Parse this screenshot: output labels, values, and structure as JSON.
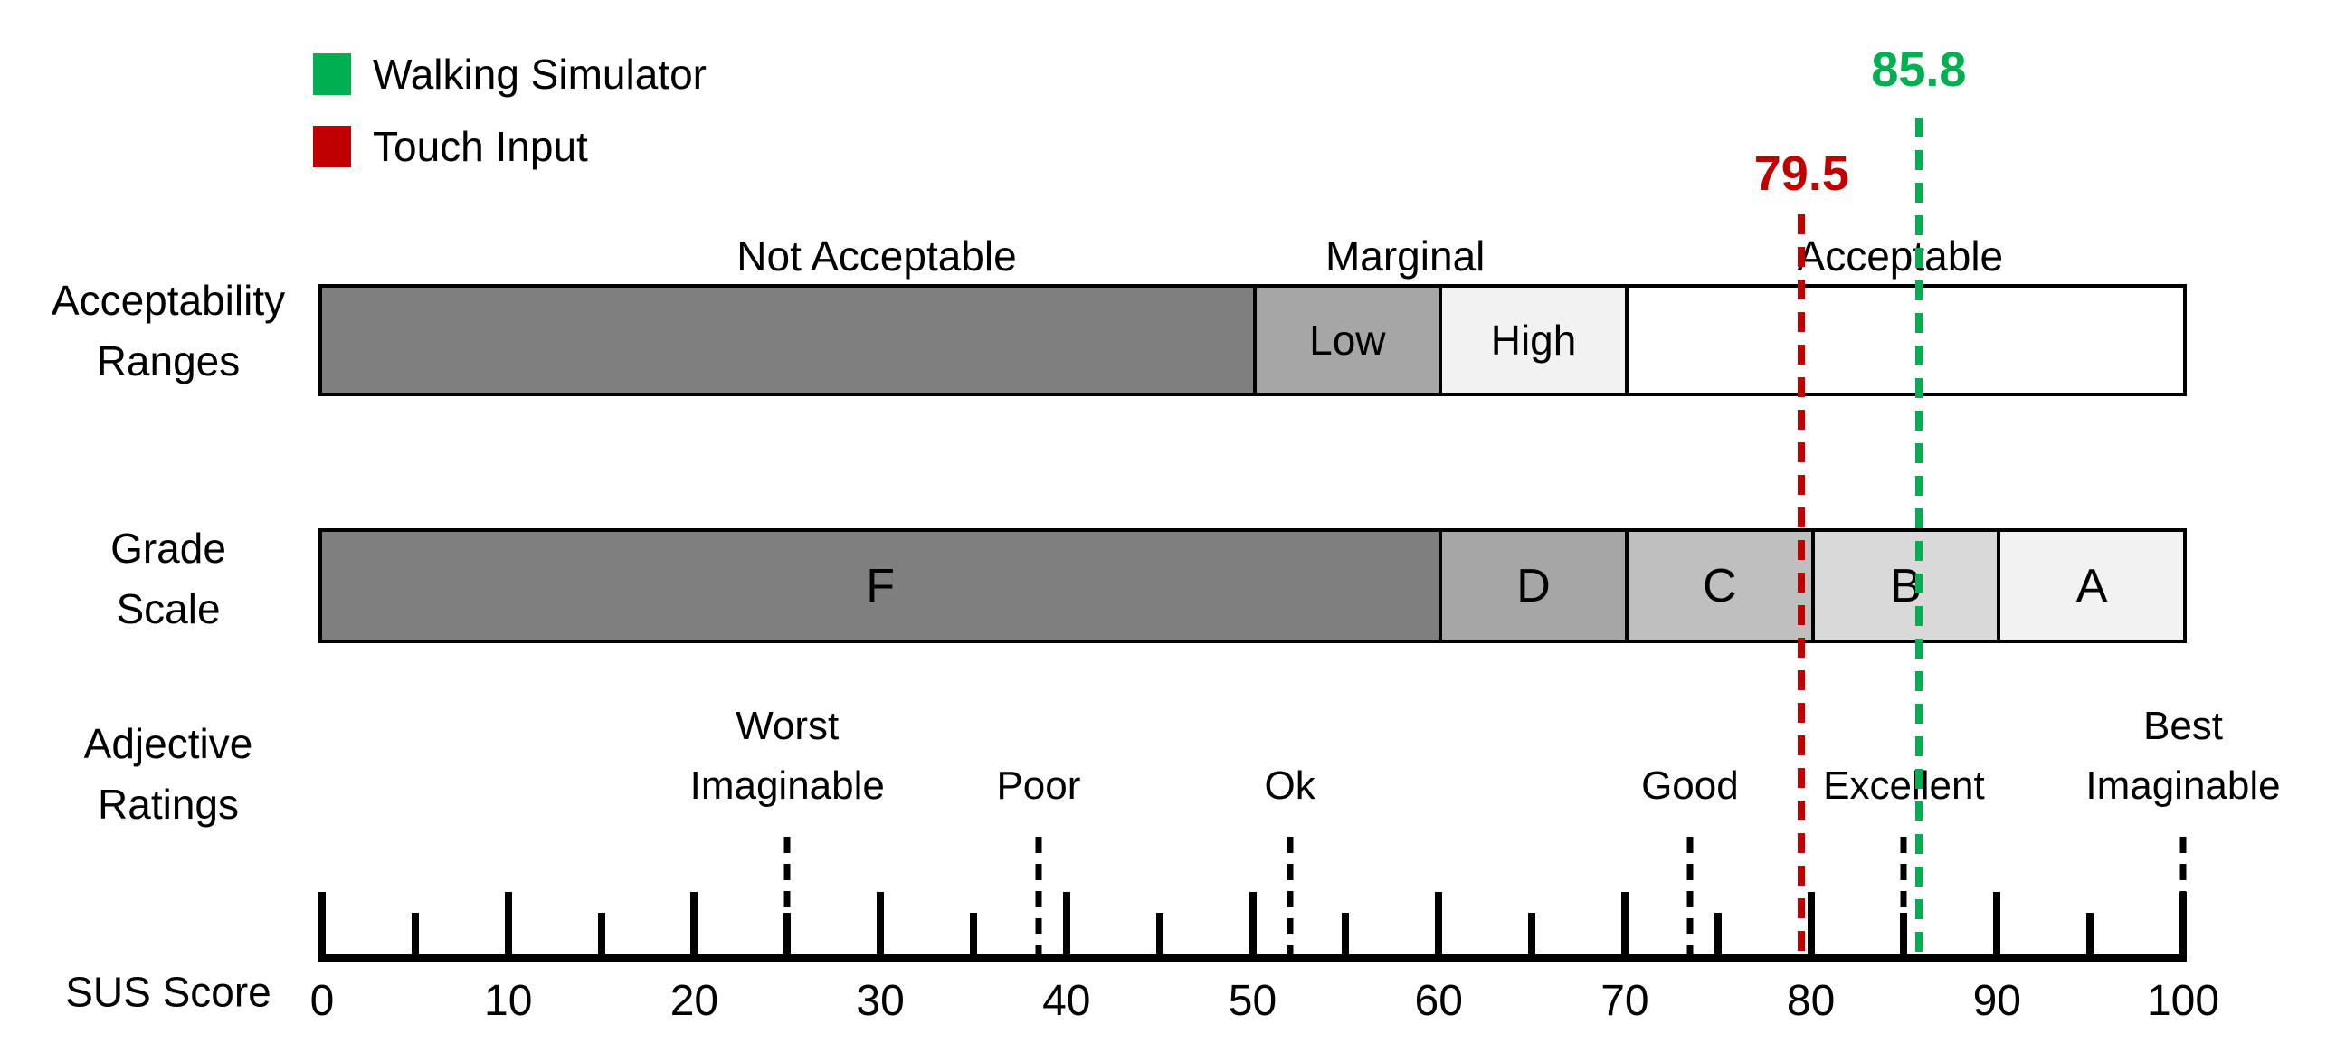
{
  "chart_data": {
    "type": "bar",
    "orientation": "horizontal",
    "title": "",
    "xlabel": "SUS Score",
    "axis": {
      "label": "SUS Score",
      "min": 0,
      "max": 100,
      "major_ticks": [
        0,
        10,
        20,
        30,
        40,
        50,
        60,
        70,
        80,
        90,
        100
      ],
      "minor_ticks": [
        5,
        15,
        25,
        35,
        45,
        55,
        65,
        75,
        85,
        95
      ],
      "tick_labels": [
        "0",
        "10",
        "20",
        "30",
        "40",
        "50",
        "60",
        "70",
        "80",
        "90",
        "100"
      ]
    },
    "legend": [
      {
        "label": "Walking Simulator",
        "color": "#00B050"
      },
      {
        "label": "Touch Input",
        "color": "#C00000"
      }
    ],
    "markers": [
      {
        "label": "85.8",
        "value": 85.8,
        "series": "Walking Simulator",
        "color": "#00B050"
      },
      {
        "label": "79.5",
        "value": 79.5,
        "series": "Touch Input",
        "color": "#C00000"
      }
    ],
    "acceptability": {
      "row_label_lines": [
        "Acceptability",
        "Ranges"
      ],
      "headers": [
        {
          "label": "Not Acceptable",
          "center": 29.8
        },
        {
          "label": "Marginal",
          "center": 58.2
        },
        {
          "label": "Acceptable",
          "center": 84.8
        }
      ],
      "segments": [
        {
          "label": "",
          "start": 0,
          "end": 50,
          "color": "#7F7F7F"
        },
        {
          "label": "Low",
          "start": 50,
          "end": 60,
          "color": "#A6A6A6"
        },
        {
          "label": "High",
          "start": 60,
          "end": 70,
          "color": "#F2F2F2"
        },
        {
          "label": "",
          "start": 70,
          "end": 100,
          "color": "#FFFFFF"
        }
      ]
    },
    "grades": {
      "row_label_lines": [
        "Grade",
        "Scale"
      ],
      "segments": [
        {
          "label": "F",
          "start": 0,
          "end": 60,
          "color": "#7F7F7F"
        },
        {
          "label": "D",
          "start": 60,
          "end": 70,
          "color": "#A6A6A6"
        },
        {
          "label": "C",
          "start": 70,
          "end": 80,
          "color": "#BFBFBF"
        },
        {
          "label": "B",
          "start": 80,
          "end": 90,
          "color": "#D9D9D9"
        },
        {
          "label": "A",
          "start": 90,
          "end": 100,
          "color": "#F2F2F2"
        }
      ]
    },
    "adjectives": {
      "row_label_lines": [
        "Adjective",
        "Ratings"
      ],
      "items": [
        {
          "lines": [
            "Worst",
            "Imaginable"
          ],
          "value": 25
        },
        {
          "lines": [
            "Poor"
          ],
          "value": 38.5
        },
        {
          "lines": [
            "Ok"
          ],
          "value": 52
        },
        {
          "lines": [
            "Good"
          ],
          "value": 73.5
        },
        {
          "lines": [
            "Excellent"
          ],
          "value": 85
        },
        {
          "lines": [
            "Best",
            "Imaginable"
          ],
          "value": 100
        }
      ]
    }
  }
}
